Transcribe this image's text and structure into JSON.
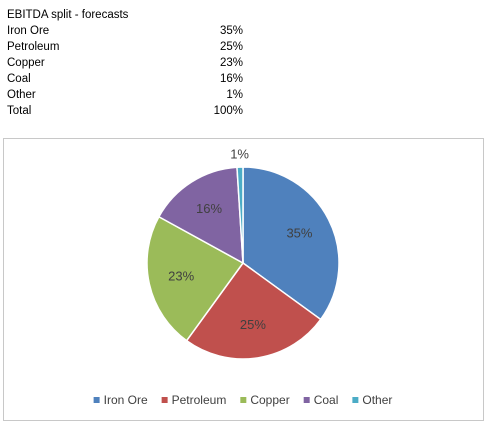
{
  "table": {
    "title": "EBITDA split - forecasts",
    "rows": [
      [
        "Iron Ore",
        "35%"
      ],
      [
        "Petroleum",
        "25%"
      ],
      [
        "Copper",
        "23%"
      ],
      [
        "Coal",
        "16%"
      ],
      [
        "Other",
        "1%"
      ],
      [
        "Total",
        "100%"
      ]
    ]
  },
  "chart_data": {
    "type": "pie",
    "categories": [
      "Iron Ore",
      "Petroleum",
      "Copper",
      "Coal",
      "Other"
    ],
    "values": [
      35,
      25,
      23,
      16,
      1
    ],
    "value_labels": [
      "35%",
      "25%",
      "23%",
      "16%",
      "1%"
    ],
    "colors": [
      "#4f81bd",
      "#c0504d",
      "#9bbb59",
      "#8064a2",
      "#4bacc6"
    ],
    "legend": "bottom"
  }
}
